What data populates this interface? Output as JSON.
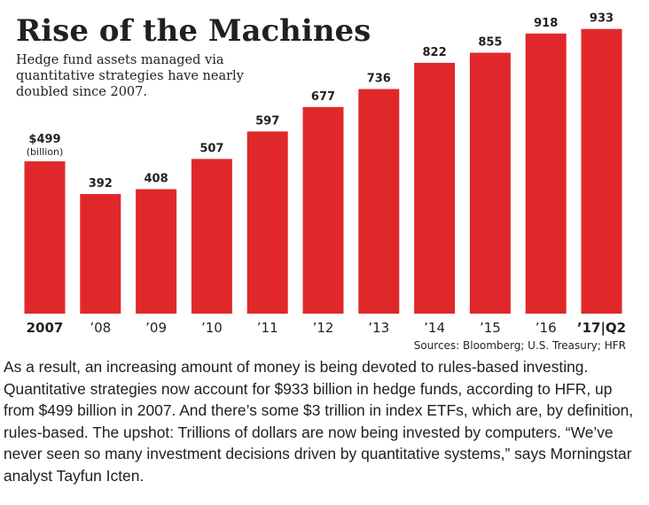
{
  "chart_data": {
    "type": "bar",
    "title": "Rise of the Machines",
    "subtitle": [
      "Hedge fund assets managed via",
      "quantitative strategies have nearly",
      "doubled since 2007."
    ],
    "categories": [
      "2007",
      "’08",
      "’09",
      "’10",
      "’11",
      "’12",
      "’13",
      "’14",
      "’15",
      "’16",
      "’17|Q2"
    ],
    "values": [
      499,
      392,
      408,
      507,
      597,
      677,
      736,
      822,
      855,
      918,
      933
    ],
    "value_labels": [
      "$499",
      "392",
      "408",
      "507",
      "597",
      "677",
      "736",
      "822",
      "855",
      "918",
      "933"
    ],
    "first_value_note": "(billion)",
    "bar_color": "#e0282b",
    "bold_categories": [
      0,
      10
    ],
    "ylim": [
      0,
      1000
    ],
    "xlabel": "",
    "ylabel": "",
    "grid": false,
    "legend": "none",
    "source": "Sources: Bloomberg; U.S. Treasury; HFR"
  },
  "article": {
    "paragraph": "As a result, an increasing amount of money is being devoted to rules-based investing. Quantitative strategies now account for $933 billion in hedge funds, according to HFR, up from $499 billion in 2007. And there’s some $3 trillion in index ETFs, which are, by definition, rules-based. The upshot: Trillions of dollars are now being invested by computers. “We’ve never seen so many investment decisions driven by quantitative systems,” says Morningstar analyst Tayfun Icten."
  }
}
